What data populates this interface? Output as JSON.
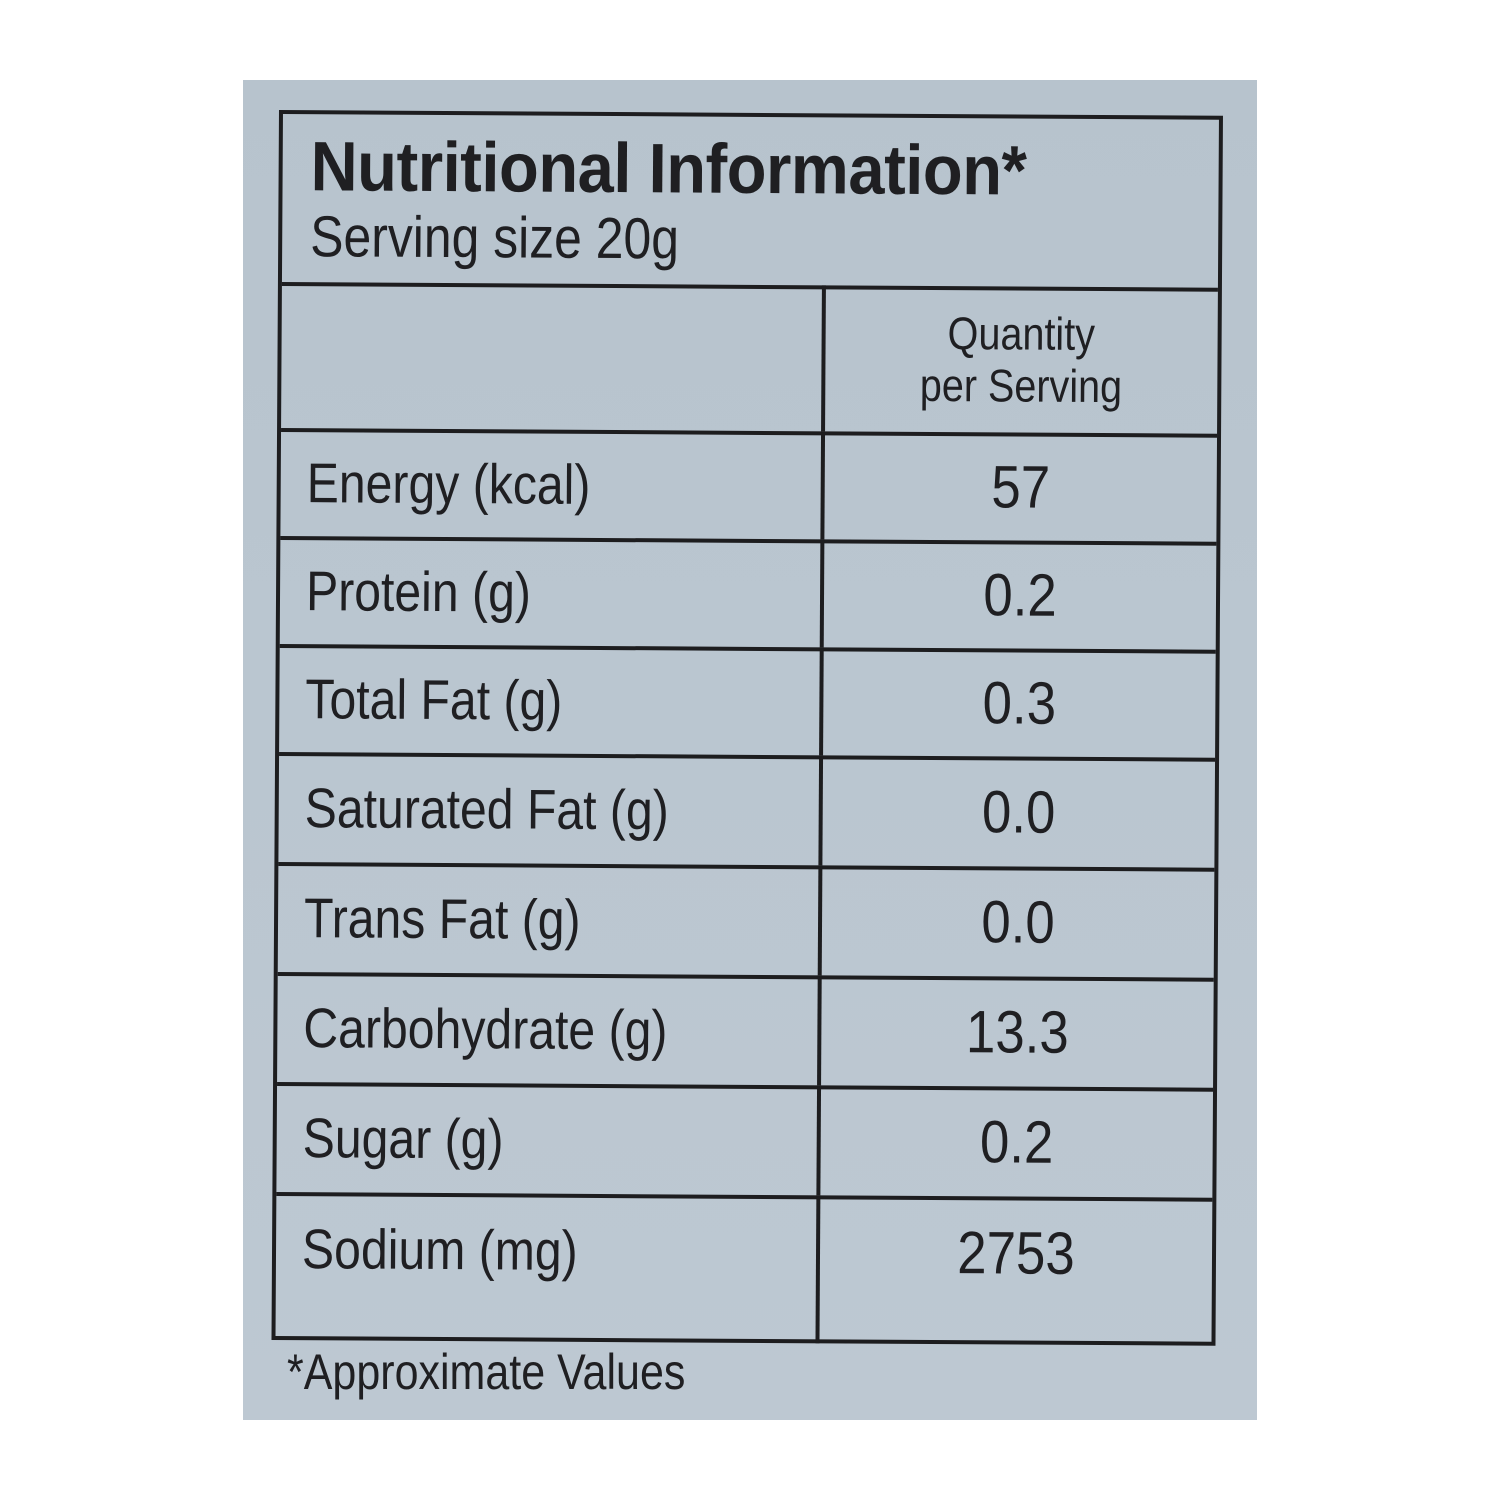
{
  "label": {
    "title": "Nutritional Information*",
    "serving_size": "Serving size 20g",
    "column_header": {
      "line1": "Quantity",
      "line2": "per Serving"
    },
    "rows": [
      {
        "nutrient": "Energy (kcal)",
        "value": "57"
      },
      {
        "nutrient": "Protein (g)",
        "value": "0.2"
      },
      {
        "nutrient": "Total Fat (g)",
        "value": "0.3"
      },
      {
        "nutrient": "Saturated Fat (g)",
        "value": "0.0"
      },
      {
        "nutrient": "Trans Fat (g)",
        "value": "0.0"
      },
      {
        "nutrient": "Carbohydrate (g)",
        "value": "13.3"
      },
      {
        "nutrient": "Sugar (g)",
        "value": "0.2"
      },
      {
        "nutrient": "Sodium (mg)",
        "value": "2753"
      }
    ],
    "footnote": "*Approximate Values"
  }
}
